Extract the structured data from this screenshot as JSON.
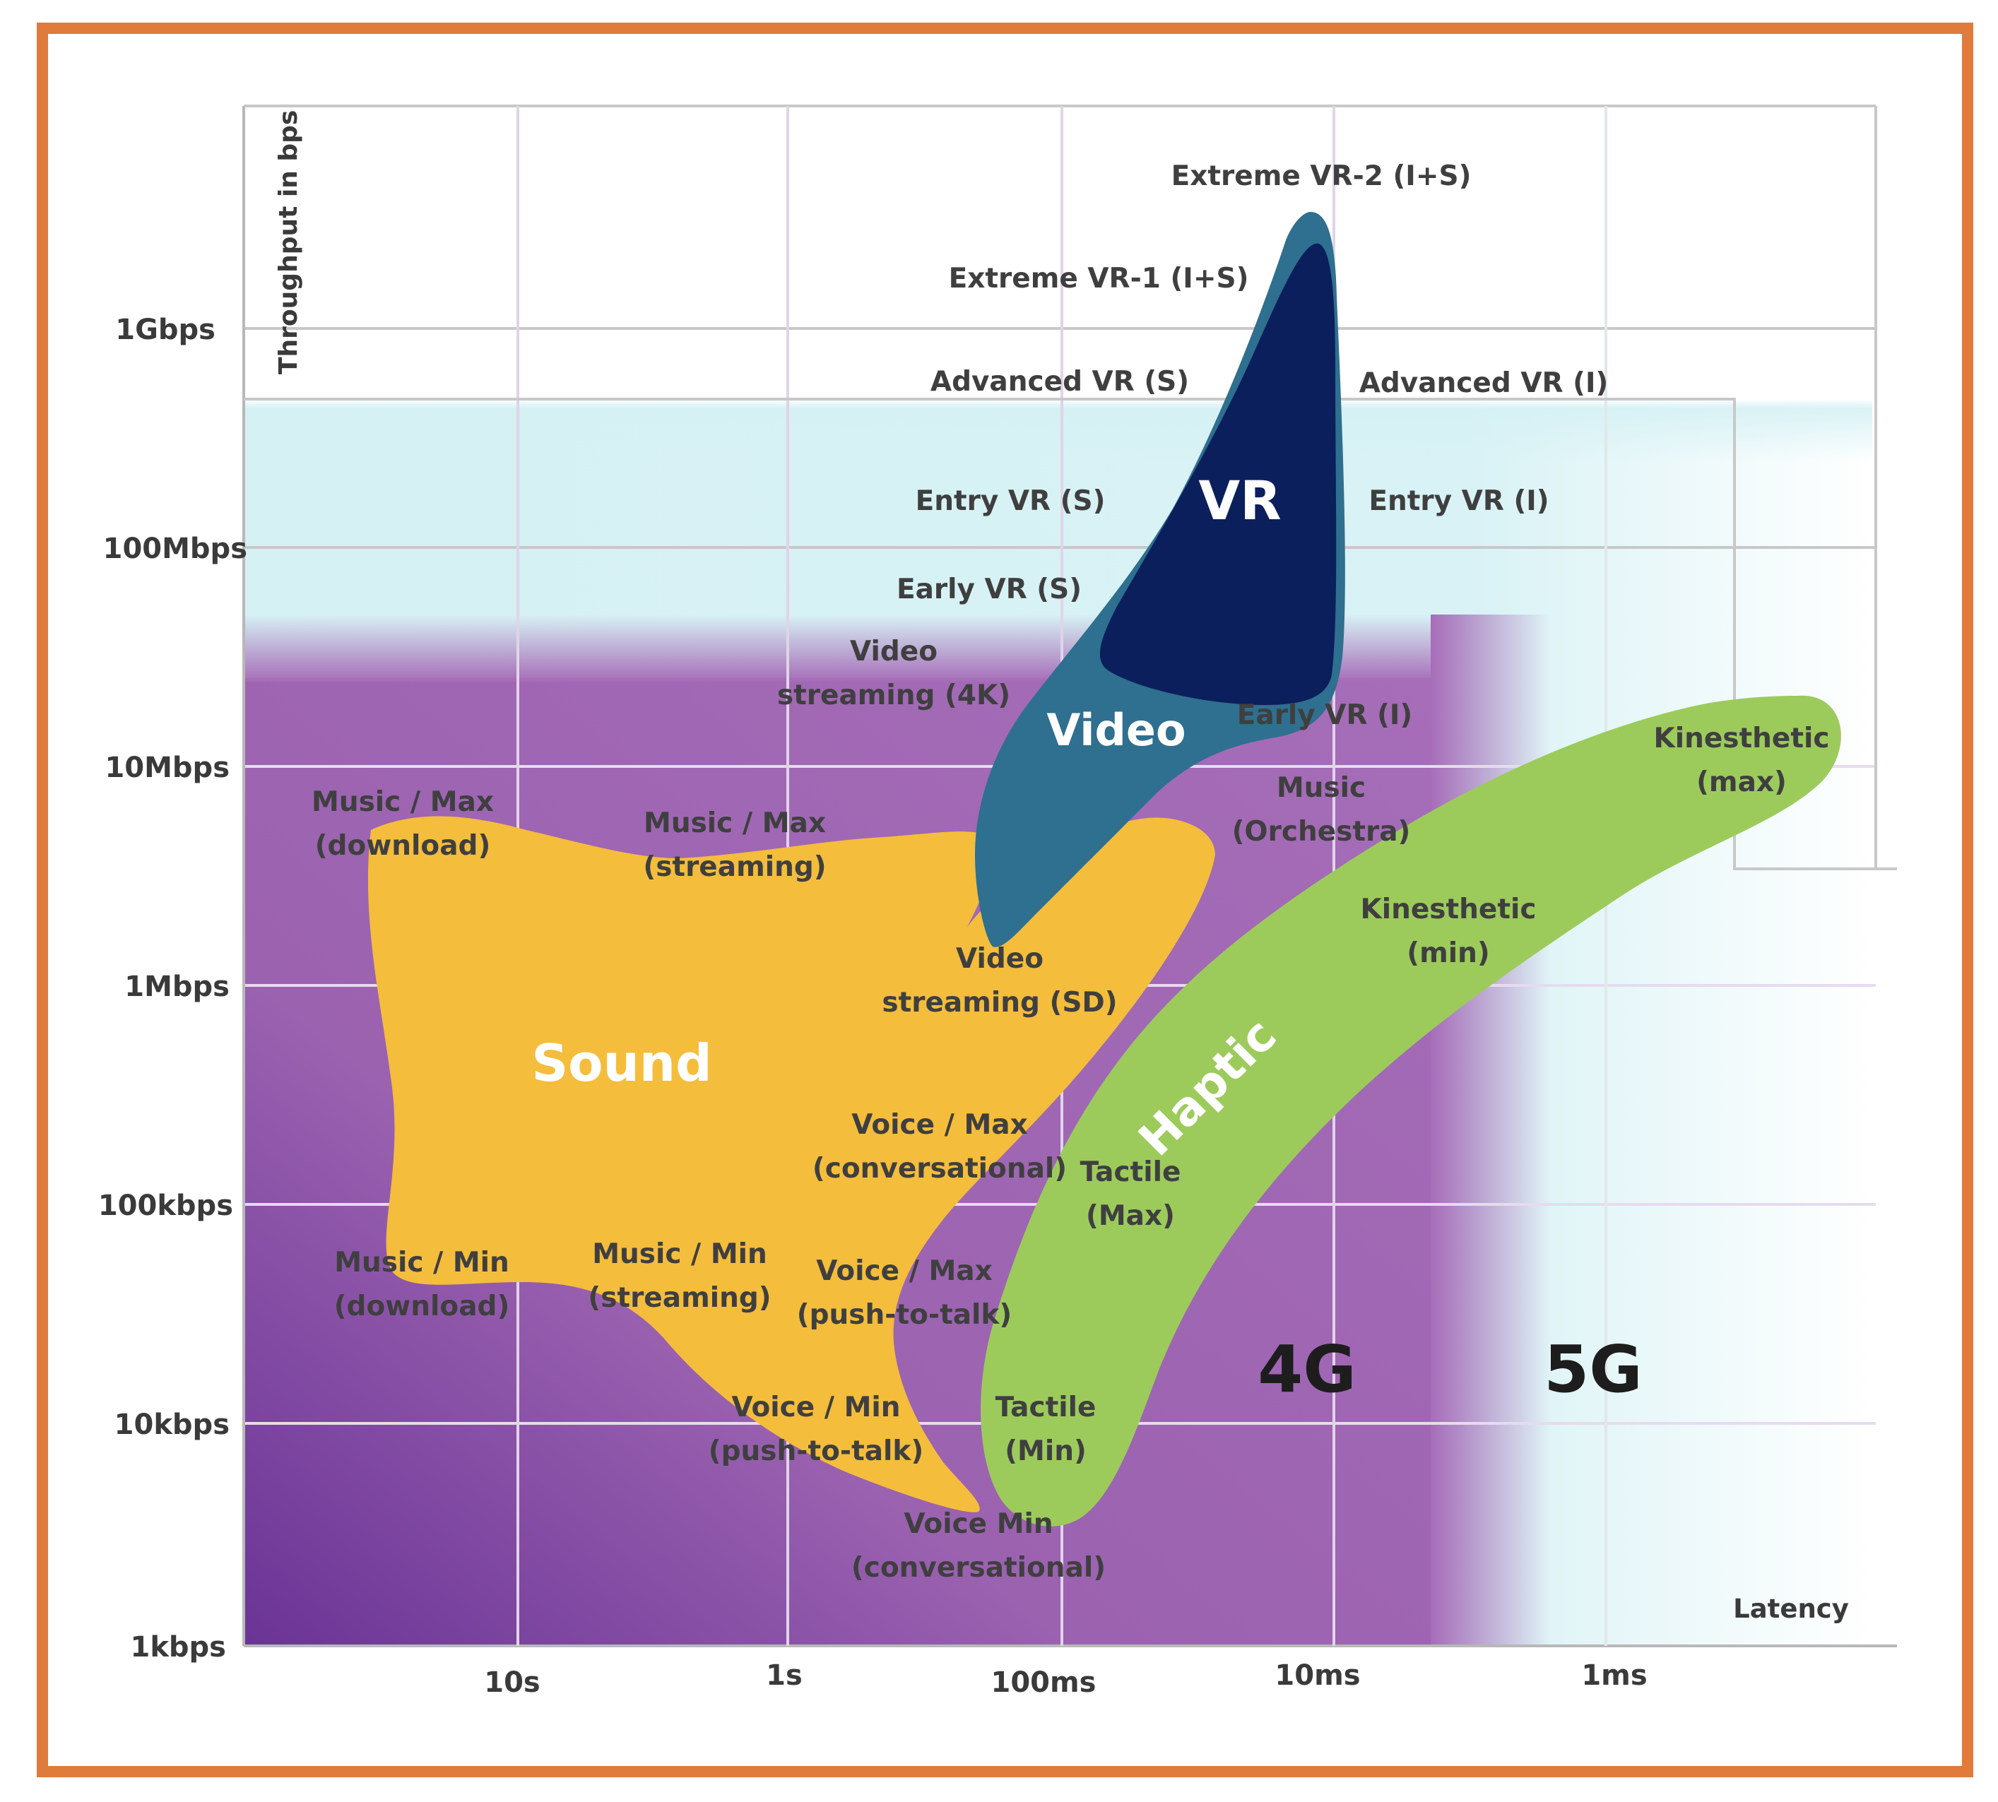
{
  "chart_data": {
    "type": "diagram",
    "y_axis": {
      "label": "Throughput in bps",
      "ticks": [
        "1Gbps",
        "100Mbps",
        "10Mbps",
        "1Mbps",
        "100kbps",
        "10kbps",
        "1kbps"
      ]
    },
    "x_axis": {
      "label": "Latency",
      "ticks": [
        "10s",
        "1s",
        "100ms",
        "10ms",
        "1ms"
      ]
    },
    "regions": {
      "vr": "VR",
      "video": "Video",
      "sound": "Sound",
      "haptic": "Haptic",
      "g4": "4G",
      "g5": "5G"
    },
    "applications": [
      "Extreme VR-2 (I+S)",
      "Extreme VR-1 (I+S)",
      "Advanced VR (S)",
      "Advanced VR (I)",
      "Entry VR (S)",
      "Entry VR (I)",
      "Early VR (S)",
      "Early VR (I)",
      "Video\nstreaming (4K)",
      "Video\nstreaming (SD)",
      "Music / Max\n(download)",
      "Music / Max\n(streaming)",
      "Music\n(Orchestra)",
      "Kinesthetic\n(max)",
      "Kinesthetic\n(min)",
      "Voice / Max\n(conversational)",
      "Tactile\n(Max)",
      "Music / Min\n(download)",
      "Music / Min\n(streaming)",
      "Voice / Max\n(push-to-talk)",
      "Voice / Min\n(push-to-talk)",
      "Tactile\n(Min)",
      "Voice Min\n(conversational)"
    ],
    "colors": {
      "frame": "#e07b3b",
      "g4_purple": "#a06ab4",
      "g4_purple_dark": "#6a3496",
      "g5_cyan": "#cfeef2",
      "sound": "#f4bd3c",
      "video": "#2f6f8f",
      "vr": "#0b1f5c",
      "haptic": "#9ccb5c",
      "grid": "#c8c8c8"
    }
  }
}
